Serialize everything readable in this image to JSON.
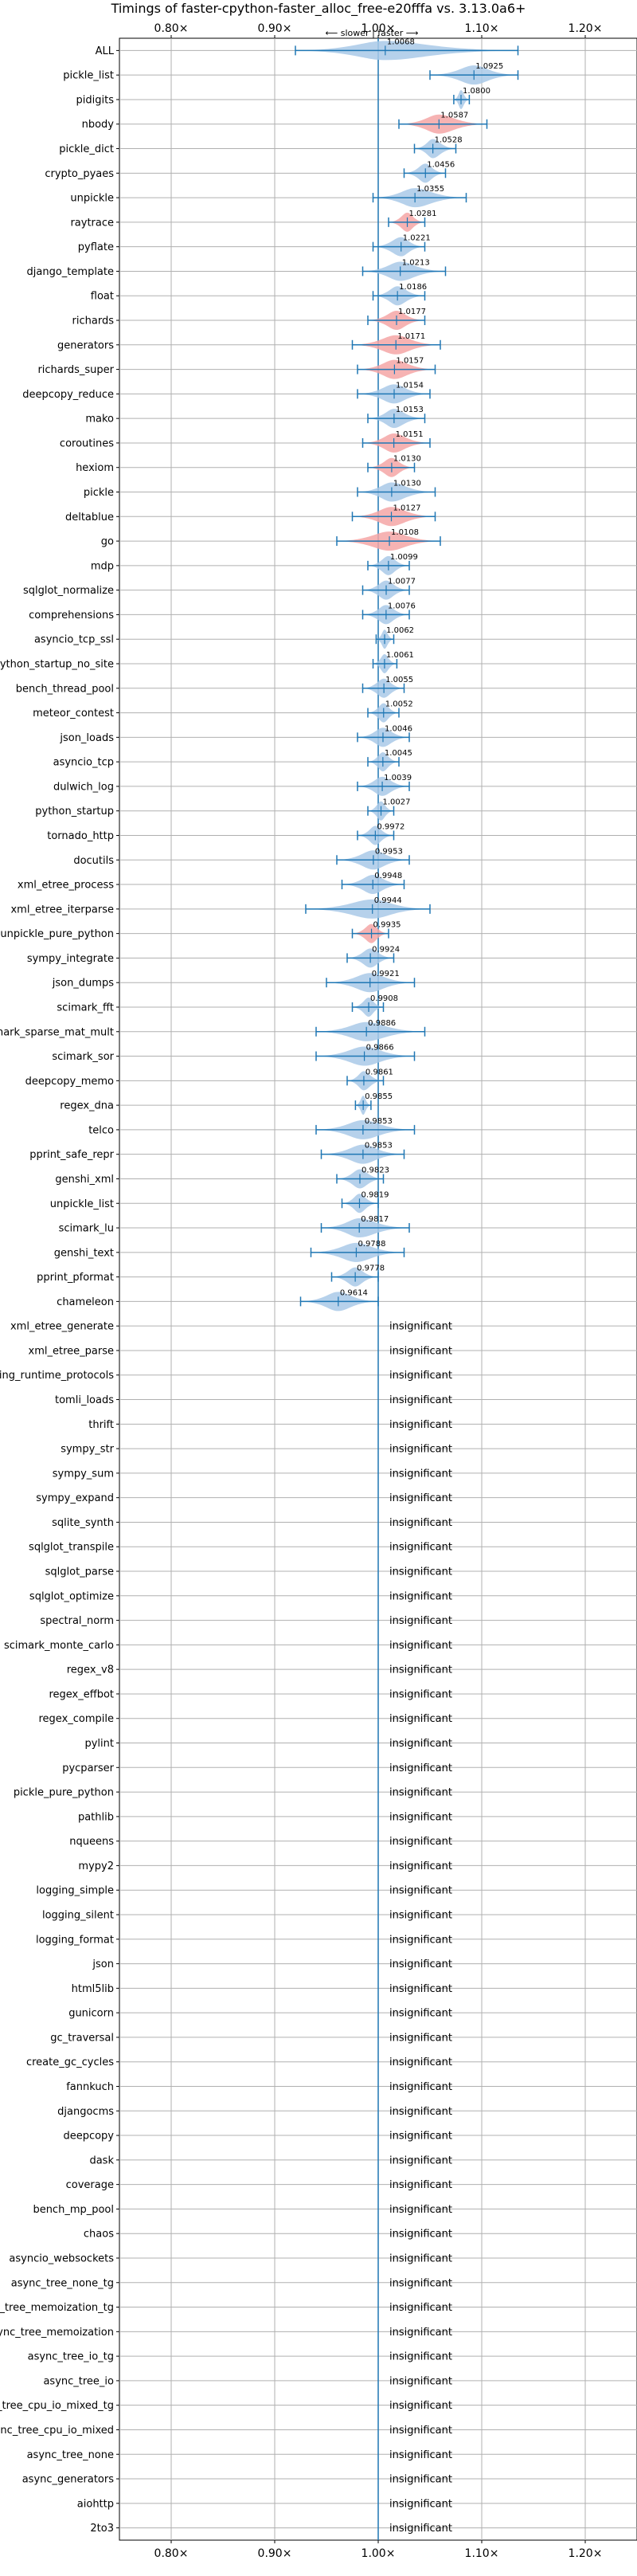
{
  "chart_data": {
    "type": "violin",
    "title": "Timings of faster-cpython-faster_alloc_free-e20fffa vs. 3.13.0a6+",
    "annotation": "⟵ slower | faster ⟶",
    "xlim": [
      0.75,
      1.25
    ],
    "xticks": [
      0.8,
      0.9,
      1.0,
      1.1,
      1.2
    ],
    "xtick_labels": [
      "0.80×",
      "0.90×",
      "1.00×",
      "1.10×",
      "1.20×"
    ],
    "insignificant_label": "insignificant",
    "colors": {
      "faster": "#a9c9e8",
      "slower": "#f4a6a6",
      "whisker": "#1f77b4",
      "refline": "#1f77b4",
      "grid": "#b0b0b0"
    },
    "benchmarks": [
      {
        "name": "ALL",
        "mean": 1.0068,
        "lo": 0.92,
        "hi": 1.135,
        "label": "1.0068",
        "faster": true
      },
      {
        "name": "pickle_list",
        "mean": 1.0925,
        "lo": 1.05,
        "hi": 1.135,
        "label": "1.0925",
        "faster": true
      },
      {
        "name": "pidigits",
        "mean": 1.08,
        "lo": 1.073,
        "hi": 1.088,
        "label": "1.0800",
        "faster": true
      },
      {
        "name": "nbody",
        "mean": 1.0587,
        "lo": 1.02,
        "hi": 1.105,
        "label": "1.0587",
        "faster": false
      },
      {
        "name": "pickle_dict",
        "mean": 1.0528,
        "lo": 1.035,
        "hi": 1.075,
        "label": "1.0528",
        "faster": true
      },
      {
        "name": "crypto_pyaes",
        "mean": 1.0456,
        "lo": 1.025,
        "hi": 1.065,
        "label": "1.0456",
        "faster": true
      },
      {
        "name": "unpickle",
        "mean": 1.0355,
        "lo": 0.995,
        "hi": 1.085,
        "label": "1.0355",
        "faster": true
      },
      {
        "name": "raytrace",
        "mean": 1.0281,
        "lo": 1.01,
        "hi": 1.045,
        "label": "1.0281",
        "faster": false
      },
      {
        "name": "pyflate",
        "mean": 1.0221,
        "lo": 0.995,
        "hi": 1.045,
        "label": "1.0221",
        "faster": true
      },
      {
        "name": "django_template",
        "mean": 1.0213,
        "lo": 0.985,
        "hi": 1.065,
        "label": "1.0213",
        "faster": true
      },
      {
        "name": "float",
        "mean": 1.0186,
        "lo": 0.995,
        "hi": 1.045,
        "label": "1.0186",
        "faster": true
      },
      {
        "name": "richards",
        "mean": 1.0177,
        "lo": 0.99,
        "hi": 1.045,
        "label": "1.0177",
        "faster": false
      },
      {
        "name": "generators",
        "mean": 1.0171,
        "lo": 0.975,
        "hi": 1.06,
        "label": "1.0171",
        "faster": false
      },
      {
        "name": "richards_super",
        "mean": 1.0157,
        "lo": 0.98,
        "hi": 1.055,
        "label": "1.0157",
        "faster": false
      },
      {
        "name": "deepcopy_reduce",
        "mean": 1.0154,
        "lo": 0.98,
        "hi": 1.05,
        "label": "1.0154",
        "faster": true
      },
      {
        "name": "mako",
        "mean": 1.0153,
        "lo": 0.99,
        "hi": 1.045,
        "label": "1.0153",
        "faster": true
      },
      {
        "name": "coroutines",
        "mean": 1.0151,
        "lo": 0.985,
        "hi": 1.05,
        "label": "1.0151",
        "faster": false
      },
      {
        "name": "hexiom",
        "mean": 1.013,
        "lo": 0.99,
        "hi": 1.035,
        "label": "1.0130",
        "faster": false
      },
      {
        "name": "pickle",
        "mean": 1.013,
        "lo": 0.98,
        "hi": 1.055,
        "label": "1.0130",
        "faster": true
      },
      {
        "name": "deltablue",
        "mean": 1.0127,
        "lo": 0.975,
        "hi": 1.055,
        "label": "1.0127",
        "faster": false
      },
      {
        "name": "go",
        "mean": 1.0108,
        "lo": 0.96,
        "hi": 1.06,
        "label": "1.0108",
        "faster": false
      },
      {
        "name": "mdp",
        "mean": 1.0099,
        "lo": 0.99,
        "hi": 1.03,
        "label": "1.0099",
        "faster": true
      },
      {
        "name": "sqlglot_normalize",
        "mean": 1.0077,
        "lo": 0.985,
        "hi": 1.03,
        "label": "1.0077",
        "faster": true
      },
      {
        "name": "comprehensions",
        "mean": 1.0076,
        "lo": 0.985,
        "hi": 1.03,
        "label": "1.0076",
        "faster": true
      },
      {
        "name": "asyncio_tcp_ssl",
        "mean": 1.0062,
        "lo": 0.998,
        "hi": 1.015,
        "label": "1.0062",
        "faster": true
      },
      {
        "name": "python_startup_no_site",
        "mean": 1.0061,
        "lo": 0.995,
        "hi": 1.018,
        "label": "1.0061",
        "faster": true
      },
      {
        "name": "bench_thread_pool",
        "mean": 1.0055,
        "lo": 0.985,
        "hi": 1.025,
        "label": "1.0055",
        "faster": true
      },
      {
        "name": "meteor_contest",
        "mean": 1.0052,
        "lo": 0.99,
        "hi": 1.02,
        "label": "1.0052",
        "faster": true
      },
      {
        "name": "json_loads",
        "mean": 1.0046,
        "lo": 0.98,
        "hi": 1.03,
        "label": "1.0046",
        "faster": true
      },
      {
        "name": "asyncio_tcp",
        "mean": 1.0045,
        "lo": 0.99,
        "hi": 1.02,
        "label": "1.0045",
        "faster": true
      },
      {
        "name": "dulwich_log",
        "mean": 1.0039,
        "lo": 0.98,
        "hi": 1.03,
        "label": "1.0039",
        "faster": true
      },
      {
        "name": "python_startup",
        "mean": 1.0027,
        "lo": 0.99,
        "hi": 1.015,
        "label": "1.0027",
        "faster": true
      },
      {
        "name": "tornado_http",
        "mean": 0.9972,
        "lo": 0.98,
        "hi": 1.015,
        "label": "0.9972",
        "faster": true
      },
      {
        "name": "docutils",
        "mean": 0.9953,
        "lo": 0.96,
        "hi": 1.03,
        "label": "0.9953",
        "faster": true
      },
      {
        "name": "xml_etree_process",
        "mean": 0.9948,
        "lo": 0.965,
        "hi": 1.025,
        "label": "0.9948",
        "faster": true
      },
      {
        "name": "xml_etree_iterparse",
        "mean": 0.9944,
        "lo": 0.93,
        "hi": 1.05,
        "label": "0.9944",
        "faster": true
      },
      {
        "name": "unpickle_pure_python",
        "mean": 0.9935,
        "lo": 0.975,
        "hi": 1.01,
        "label": "0.9935",
        "faster": false
      },
      {
        "name": "sympy_integrate",
        "mean": 0.9924,
        "lo": 0.97,
        "hi": 1.015,
        "label": "0.9924",
        "faster": true
      },
      {
        "name": "json_dumps",
        "mean": 0.9921,
        "lo": 0.95,
        "hi": 1.035,
        "label": "0.9921",
        "faster": true
      },
      {
        "name": "scimark_fft",
        "mean": 0.9908,
        "lo": 0.975,
        "hi": 1.005,
        "label": "0.9908",
        "faster": true
      },
      {
        "name": "scimark_sparse_mat_mult",
        "mean": 0.9886,
        "lo": 0.94,
        "hi": 1.045,
        "label": "0.9886",
        "faster": true
      },
      {
        "name": "scimark_sor",
        "mean": 0.9866,
        "lo": 0.94,
        "hi": 1.035,
        "label": "0.9866",
        "faster": true
      },
      {
        "name": "deepcopy_memo",
        "mean": 0.9861,
        "lo": 0.97,
        "hi": 1.005,
        "label": "0.9861",
        "faster": true
      },
      {
        "name": "regex_dna",
        "mean": 0.9855,
        "lo": 0.978,
        "hi": 0.993,
        "label": "0.9855",
        "faster": true
      },
      {
        "name": "telco",
        "mean": 0.9853,
        "lo": 0.94,
        "hi": 1.035,
        "label": "0.9853",
        "faster": true
      },
      {
        "name": "pprint_safe_repr",
        "mean": 0.9853,
        "lo": 0.945,
        "hi": 1.025,
        "label": "0.9853",
        "faster": true
      },
      {
        "name": "genshi_xml",
        "mean": 0.9823,
        "lo": 0.96,
        "hi": 1.005,
        "label": "0.9823",
        "faster": true
      },
      {
        "name": "unpickle_list",
        "mean": 0.9819,
        "lo": 0.965,
        "hi": 1.0,
        "label": "0.9819",
        "faster": true
      },
      {
        "name": "scimark_lu",
        "mean": 0.9817,
        "lo": 0.945,
        "hi": 1.03,
        "label": "0.9817",
        "faster": true
      },
      {
        "name": "genshi_text",
        "mean": 0.9788,
        "lo": 0.935,
        "hi": 1.025,
        "label": "0.9788",
        "faster": true
      },
      {
        "name": "pprint_pformat",
        "mean": 0.9778,
        "lo": 0.955,
        "hi": 1.0,
        "label": "0.9778",
        "faster": true
      },
      {
        "name": "chameleon",
        "mean": 0.9614,
        "lo": 0.925,
        "hi": 1.0,
        "label": "0.9614",
        "faster": true
      },
      {
        "name": "xml_etree_generate",
        "insignificant": true
      },
      {
        "name": "xml_etree_parse",
        "insignificant": true
      },
      {
        "name": "typing_runtime_protocols",
        "insignificant": true
      },
      {
        "name": "tomli_loads",
        "insignificant": true
      },
      {
        "name": "thrift",
        "insignificant": true
      },
      {
        "name": "sympy_str",
        "insignificant": true
      },
      {
        "name": "sympy_sum",
        "insignificant": true
      },
      {
        "name": "sympy_expand",
        "insignificant": true
      },
      {
        "name": "sqlite_synth",
        "insignificant": true
      },
      {
        "name": "sqlglot_transpile",
        "insignificant": true
      },
      {
        "name": "sqlglot_parse",
        "insignificant": true
      },
      {
        "name": "sqlglot_optimize",
        "insignificant": true
      },
      {
        "name": "spectral_norm",
        "insignificant": true
      },
      {
        "name": "scimark_monte_carlo",
        "insignificant": true
      },
      {
        "name": "regex_v8",
        "insignificant": true
      },
      {
        "name": "regex_effbot",
        "insignificant": true
      },
      {
        "name": "regex_compile",
        "insignificant": true
      },
      {
        "name": "pylint",
        "insignificant": true
      },
      {
        "name": "pycparser",
        "insignificant": true
      },
      {
        "name": "pickle_pure_python",
        "insignificant": true
      },
      {
        "name": "pathlib",
        "insignificant": true
      },
      {
        "name": "nqueens",
        "insignificant": true
      },
      {
        "name": "mypy2",
        "insignificant": true
      },
      {
        "name": "logging_simple",
        "insignificant": true
      },
      {
        "name": "logging_silent",
        "insignificant": true
      },
      {
        "name": "logging_format",
        "insignificant": true
      },
      {
        "name": "json",
        "insignificant": true
      },
      {
        "name": "html5lib",
        "insignificant": true
      },
      {
        "name": "gunicorn",
        "insignificant": true
      },
      {
        "name": "gc_traversal",
        "insignificant": true
      },
      {
        "name": "create_gc_cycles",
        "insignificant": true
      },
      {
        "name": "fannkuch",
        "insignificant": true
      },
      {
        "name": "djangocms",
        "insignificant": true
      },
      {
        "name": "deepcopy",
        "insignificant": true
      },
      {
        "name": "dask",
        "insignificant": true
      },
      {
        "name": "coverage",
        "insignificant": true
      },
      {
        "name": "bench_mp_pool",
        "insignificant": true
      },
      {
        "name": "chaos",
        "insignificant": true
      },
      {
        "name": "asyncio_websockets",
        "insignificant": true
      },
      {
        "name": "async_tree_none_tg",
        "insignificant": true
      },
      {
        "name": "async_tree_memoization_tg",
        "insignificant": true
      },
      {
        "name": "async_tree_memoization",
        "insignificant": true
      },
      {
        "name": "async_tree_io_tg",
        "insignificant": true
      },
      {
        "name": "async_tree_io",
        "insignificant": true
      },
      {
        "name": "async_tree_cpu_io_mixed_tg",
        "insignificant": true
      },
      {
        "name": "async_tree_cpu_io_mixed",
        "insignificant": true
      },
      {
        "name": "async_tree_none",
        "insignificant": true
      },
      {
        "name": "async_generators",
        "insignificant": true
      },
      {
        "name": "aiohttp",
        "insignificant": true
      },
      {
        "name": "2to3",
        "insignificant": true
      }
    ]
  }
}
